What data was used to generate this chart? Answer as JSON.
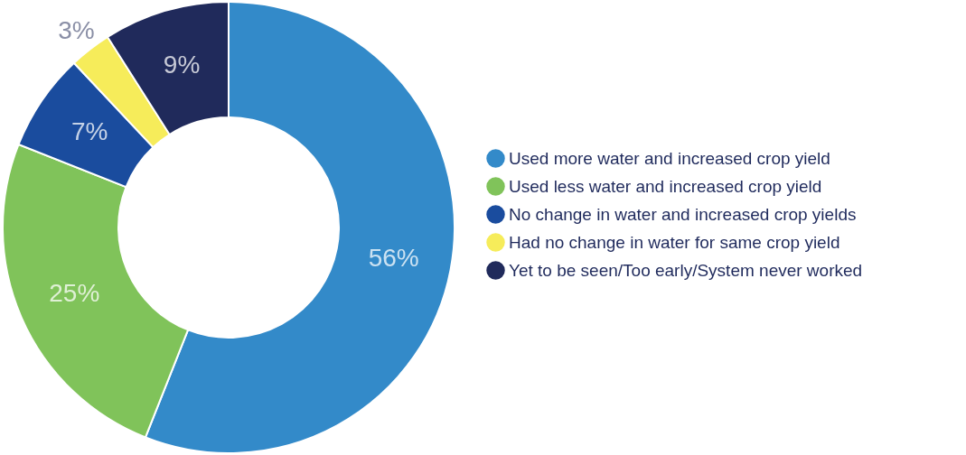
{
  "chart_data": {
    "type": "donut",
    "categories": [
      "Used more water and increased crop yield",
      "Used less water and increased crop yield",
      "No change in water and increased crop yields",
      "Had no change in water for same crop yield",
      "Yet to be seen/Too early/System never worked"
    ],
    "values": [
      56,
      25,
      7,
      3,
      9
    ],
    "value_labels": [
      "56%",
      "25%",
      "7%",
      "3%",
      "9%"
    ],
    "colors": [
      "#338ac9",
      "#80c35a",
      "#1a4c9e",
      "#f6ec5a",
      "#202a5b"
    ],
    "legend": "right"
  }
}
